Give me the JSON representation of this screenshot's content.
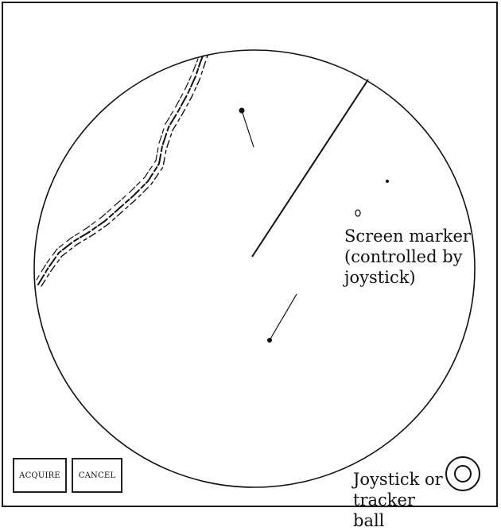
{
  "buttons": {
    "acquire_label": "ACQUIRE",
    "cancel_label": "CANCEL"
  },
  "screen_marker_label": {
    "line1": "Screen marker",
    "line2": "(controlled by",
    "line3": "joystick)"
  },
  "joystick_label": {
    "line1": "Joystick or",
    "line2": "tracker ball"
  },
  "colors": {
    "ink": "#111111",
    "background": "#ffffff"
  }
}
